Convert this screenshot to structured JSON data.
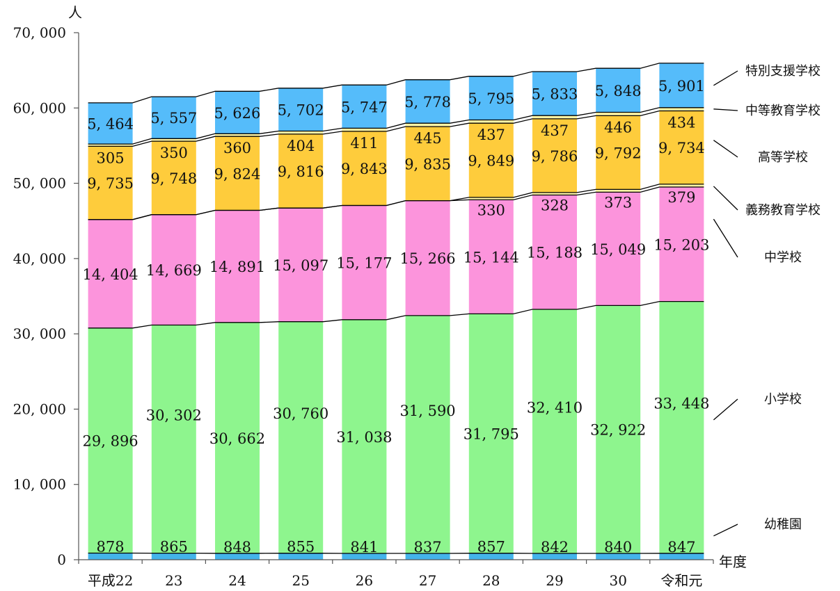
{
  "chart_data": {
    "type": "bar",
    "stacked": true,
    "y_unit": "人",
    "x_unit": "年度",
    "categories": [
      "平成22",
      "23",
      "24",
      "25",
      "26",
      "27",
      "28",
      "29",
      "30",
      "令和元"
    ],
    "yticks": [
      "0",
      "10, 000",
      "20, 000",
      "30, 000",
      "40, 000",
      "50, 000",
      "60, 000",
      "70, 000"
    ],
    "ylim": [
      0,
      70000
    ],
    "series": [
      {
        "name": "幼稚園",
        "color": "#44b4ea",
        "values": [
          878,
          865,
          848,
          855,
          841,
          837,
          857,
          842,
          840,
          847
        ],
        "labels": [
          "878",
          "865",
          "848",
          "855",
          "841",
          "837",
          "857",
          "842",
          "840",
          "847"
        ]
      },
      {
        "name": "小学校",
        "color": "#8ef58e",
        "values": [
          29896,
          30302,
          30662,
          30760,
          31038,
          31590,
          31795,
          32410,
          32922,
          33448
        ],
        "labels": [
          "29, 896",
          "30, 302",
          "30, 662",
          "30, 760",
          "31, 038",
          "31, 590",
          "31, 795",
          "32, 410",
          "32, 922",
          "33, 448"
        ]
      },
      {
        "name": "中学校",
        "color": "#fc94dc",
        "values": [
          14404,
          14669,
          14891,
          15097,
          15177,
          15266,
          15144,
          15188,
          15049,
          15203
        ],
        "labels": [
          "14, 404",
          "14, 669",
          "14, 891",
          "15, 097",
          "15, 177",
          "15, 266",
          "15, 144",
          "15, 188",
          "15, 049",
          "15, 203"
        ]
      },
      {
        "name": "義務教育学校",
        "color": "#fdf3a4",
        "values": [
          0,
          0,
          0,
          0,
          0,
          0,
          330,
          328,
          373,
          379
        ],
        "labels": [
          "",
          "",
          "",
          "",
          "",
          "",
          "330",
          "328",
          "373",
          "379"
        ]
      },
      {
        "name": "高等学校",
        "color": "#fecc3c",
        "values": [
          9735,
          9748,
          9824,
          9816,
          9843,
          9835,
          9849,
          9786,
          9792,
          9734
        ],
        "labels": [
          "9, 735",
          "9, 748",
          "9, 824",
          "9, 816",
          "9, 843",
          "9, 835",
          "9, 849",
          "9, 786",
          "9, 792",
          "9, 734"
        ]
      },
      {
        "name": "中等教育学校",
        "color": "#fdf3a4",
        "values": [
          305,
          350,
          360,
          404,
          411,
          445,
          437,
          437,
          446,
          434
        ],
        "labels": [
          "305",
          "350",
          "360",
          "404",
          "411",
          "445",
          "437",
          "437",
          "446",
          "434"
        ]
      },
      {
        "name": "特別支援学校",
        "color": "#55bcfa",
        "values": [
          5464,
          5557,
          5626,
          5702,
          5747,
          5778,
          5795,
          5833,
          5848,
          5901
        ],
        "labels": [
          "5, 464",
          "5, 557",
          "5, 626",
          "5, 702",
          "5, 747",
          "5, 778",
          "5, 795",
          "5, 833",
          "5, 848",
          "5, 901"
        ]
      }
    ],
    "grid": false,
    "legend": "right, series labels with leader lines"
  }
}
